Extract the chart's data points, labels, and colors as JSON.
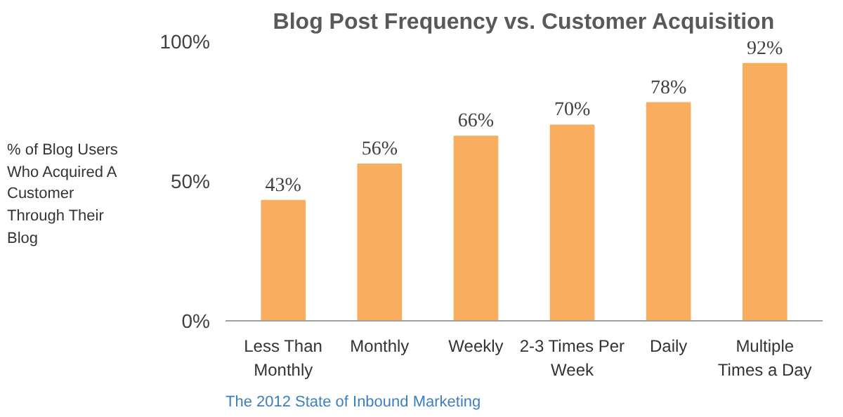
{
  "chart_data": {
    "type": "bar",
    "title": "Blog Post Frequency vs. Customer Acquisition",
    "ylabel": "% of Blog Users Who Acquired A Customer Through Their Blog",
    "categories": [
      "Less Than Monthly",
      "Monthly",
      "Weekly",
      "2-3 Times Per Week",
      "Daily",
      "Multiple Times a Day"
    ],
    "values": [
      43,
      56,
      66,
      70,
      78,
      92
    ],
    "value_labels": [
      "43%",
      "56%",
      "66%",
      "70%",
      "78%",
      "92%"
    ],
    "color": "#f9ad5e",
    "ylim": [
      0,
      100
    ],
    "yticks": [
      {
        "value": 0,
        "label": "0%"
      },
      {
        "value": 50,
        "label": "50%"
      },
      {
        "value": 100,
        "label": "100%"
      }
    ],
    "annotations": [
      "The 2012 State of Inbound Marketing"
    ]
  }
}
